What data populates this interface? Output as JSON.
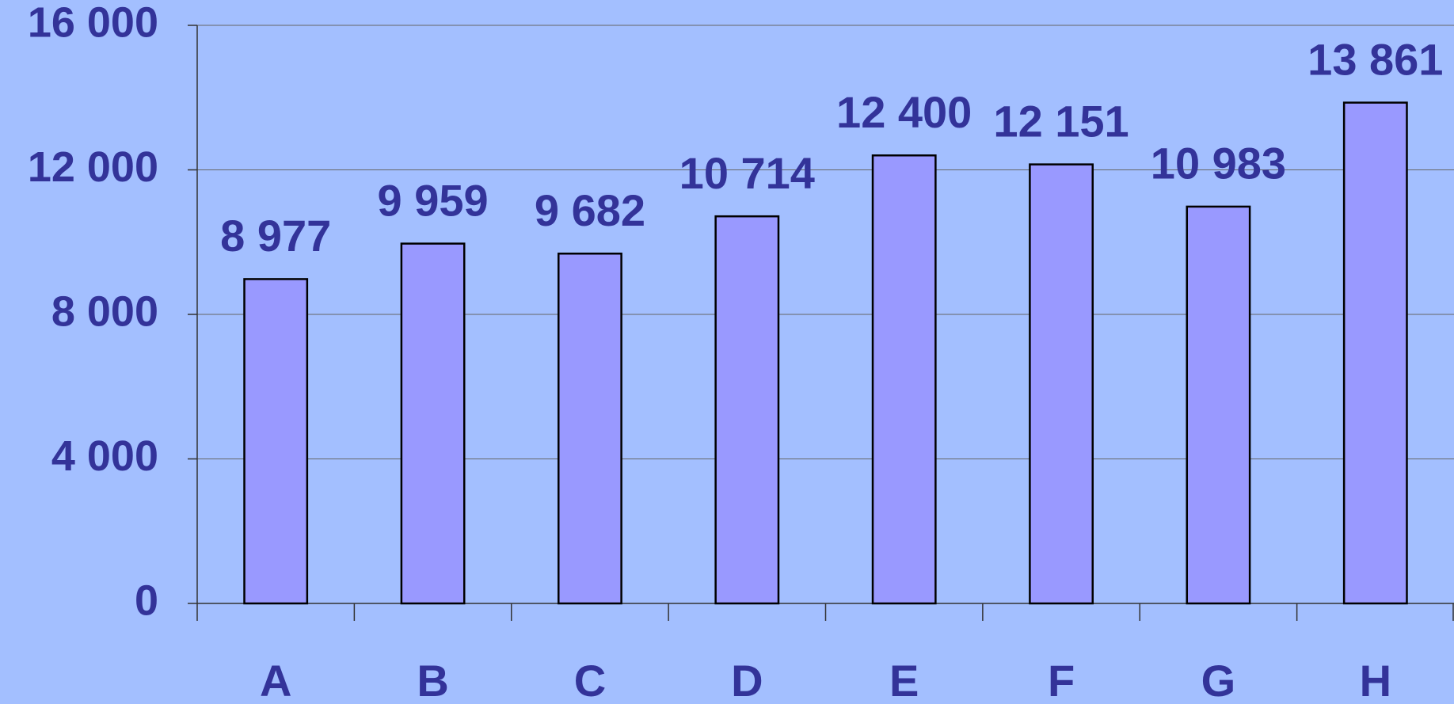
{
  "chart_data": {
    "type": "bar",
    "categories": [
      "A",
      "B",
      "C",
      "D",
      "E",
      "F",
      "G",
      "H"
    ],
    "values": [
      8977,
      9959,
      9682,
      10714,
      12400,
      12151,
      10983,
      13861
    ],
    "value_labels": [
      "8 977",
      "9 959",
      "9 682",
      "10 714",
      "12 400",
      "12 151",
      "10 983",
      "13 861"
    ],
    "color": "#9999ff",
    "ylim": [
      0,
      16000
    ],
    "yticks": [
      0,
      {
        "value": 4000,
        "label": "4 000"
      },
      {
        "value": 8000,
        "label": "8 000"
      },
      {
        "value": 12000,
        "label": "12 000"
      },
      {
        "value": 16000,
        "label": "16 000"
      }
    ],
    "grid": true
  }
}
